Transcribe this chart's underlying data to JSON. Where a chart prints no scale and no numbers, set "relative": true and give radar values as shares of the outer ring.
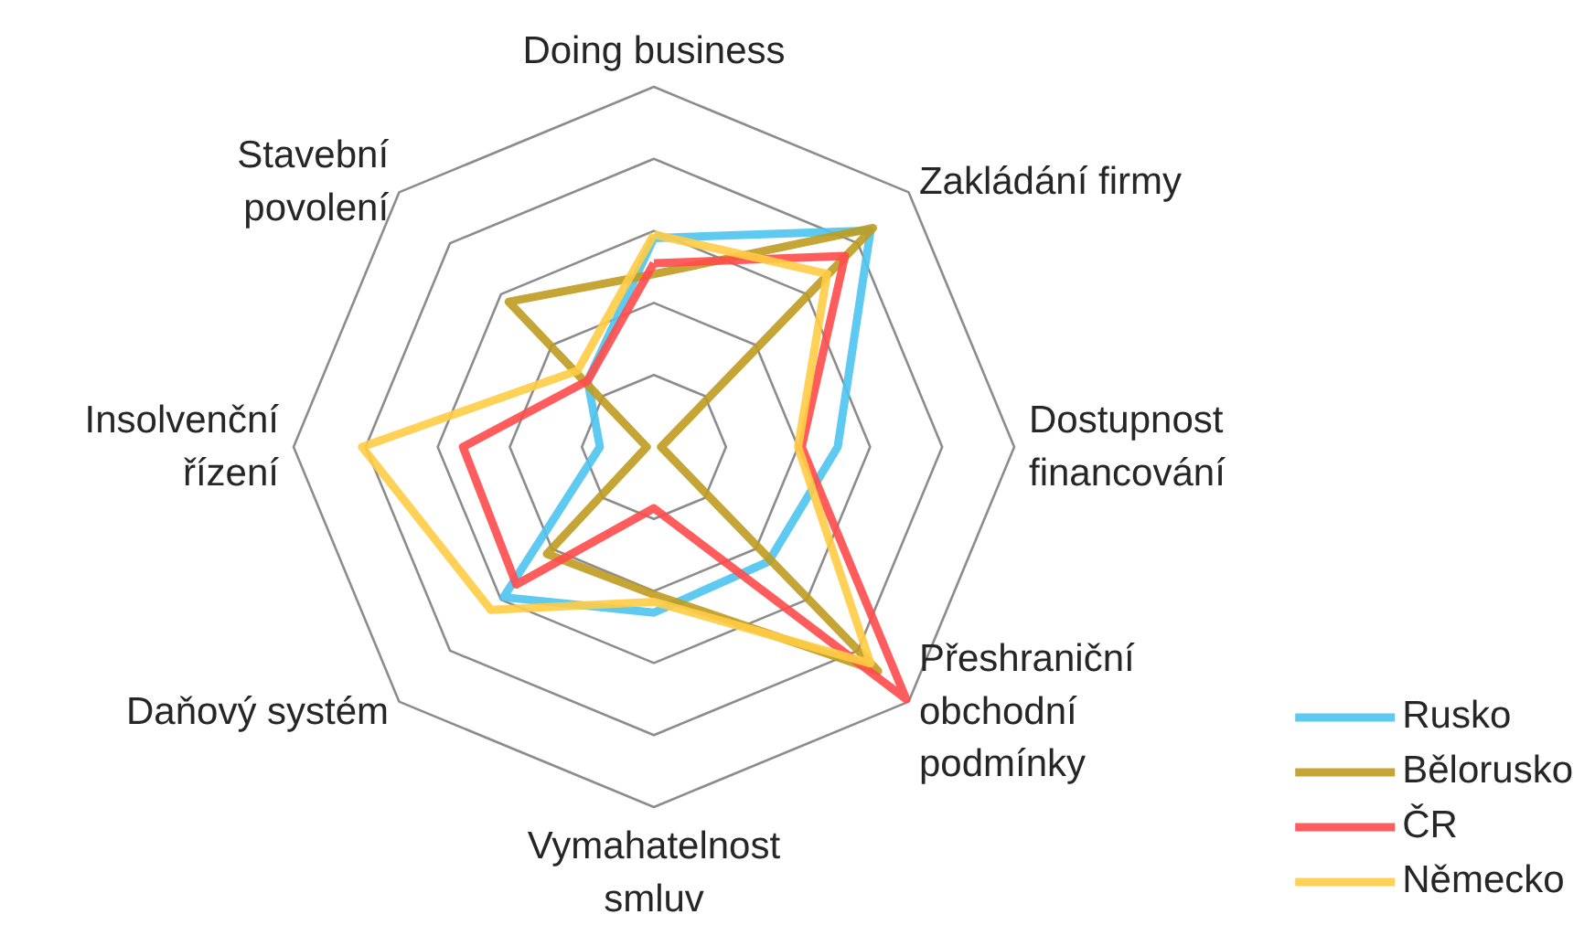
{
  "chart_data": {
    "type": "radar",
    "relative": true,
    "grid": true,
    "legend": "bottom right",
    "categories": [
      "Doing business",
      "Zakládání firmy",
      "Dostupnost\nfinancování",
      "Přeshraniční\nobchodní\npodmínky",
      "Vymahatelnost\nsmluv",
      "Daňový systém",
      "Insolvenční\nřízení",
      "Stavební\npovolení"
    ],
    "series": [
      {
        "name": "Rusko",
        "color": "#4dc3f0",
        "values": [
          0.58,
          0.85,
          0.51,
          0.45,
          0.46,
          0.59,
          0.15,
          0.26
        ]
      },
      {
        "name": "Bělorusko",
        "color": "#bf9b1f",
        "values": [
          0.48,
          0.86,
          0.02,
          0.88,
          0.41,
          0.42,
          0.02,
          0.57
        ]
      },
      {
        "name": "ČR",
        "color": "#ff4b4b",
        "values": [
          0.51,
          0.75,
          0.41,
          0.99,
          0.17,
          0.54,
          0.53,
          0.26
        ]
      },
      {
        "name": "Německo",
        "color": "#ffcc44",
        "values": [
          0.59,
          0.68,
          0.4,
          0.85,
          0.43,
          0.64,
          0.81,
          0.3
        ]
      }
    ]
  }
}
